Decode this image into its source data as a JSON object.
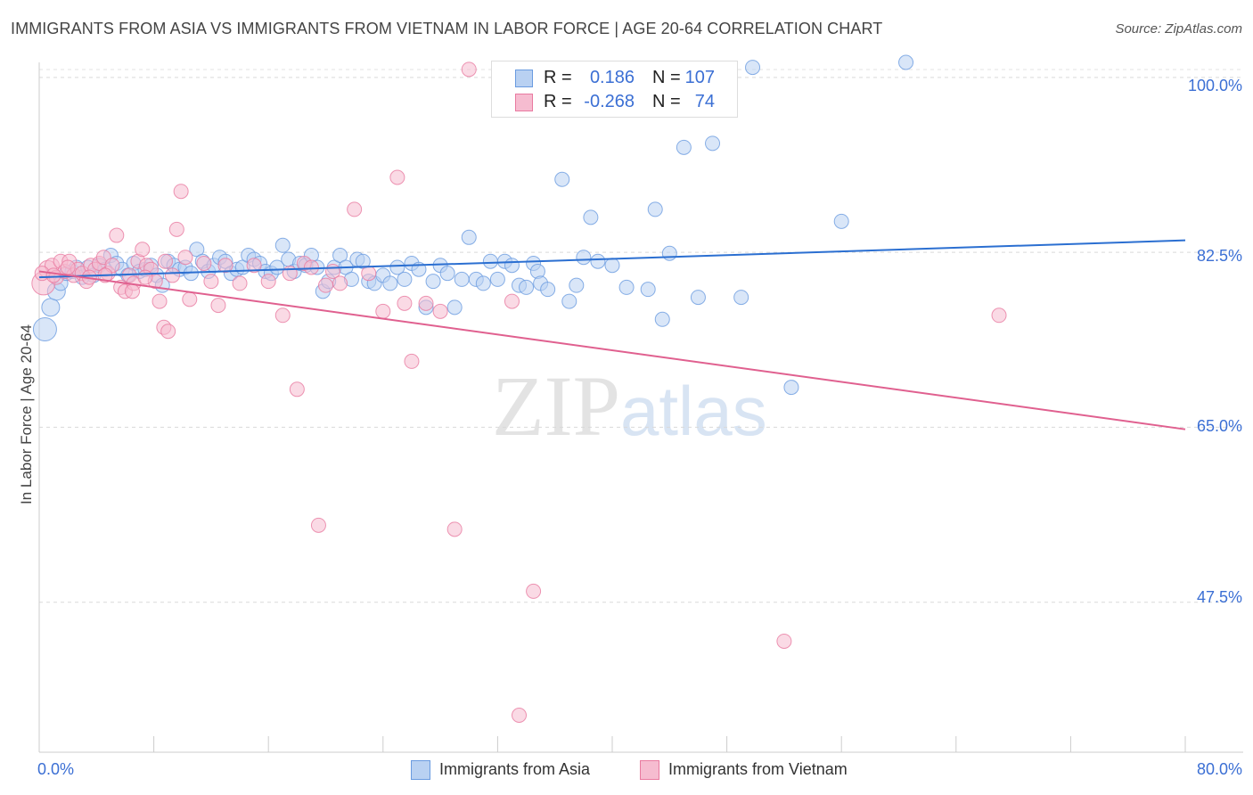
{
  "title": "IMMIGRANTS FROM ASIA VS IMMIGRANTS FROM VIETNAM IN LABOR FORCE | AGE 20-64 CORRELATION CHART",
  "source": "Source: ZipAtlas.com",
  "watermark": {
    "zip": "ZIP",
    "atlas": "atlas"
  },
  "colors": {
    "blue": "#6a9be0",
    "blue_fill": "#b9d1f2",
    "pink": "#e97aa0",
    "pink_fill": "#f6bcd0",
    "blue_line": "#2b6fd1",
    "pink_line": "#e0608f",
    "tick_text": "#3b6fd4"
  },
  "legend_top": {
    "rows": [
      {
        "r_label": "R =",
        "r_value": "0.186",
        "n_label": "N =",
        "n_value": "107"
      },
      {
        "r_label": "R =",
        "r_value": "-0.268",
        "n_label": "N =",
        "n_value": "74"
      }
    ]
  },
  "chart_data": {
    "type": "scatter",
    "title": "IMMIGRANTS FROM ASIA VS IMMIGRANTS FROM VIETNAM IN LABOR FORCE | AGE 20-64 CORRELATION CHART",
    "xlabel": "",
    "ylabel": "In Labor Force | Age 20-64",
    "xlim": [
      0,
      80
    ],
    "ylim": [
      32.5,
      101.5
    ],
    "x_tick_labels": [
      "0.0%",
      "80.0%"
    ],
    "y_ticks": [
      47.5,
      65.0,
      82.5,
      100.0
    ],
    "y_tick_labels": [
      "47.5%",
      "65.0%",
      "82.5%",
      "100.0%"
    ],
    "grid": "horizontal dashed",
    "legend_placement": "bottom-center",
    "series": [
      {
        "name": "Immigrants from Asia",
        "color": "#6a9be0",
        "trend": {
          "x": [
            0,
            80
          ],
          "y": [
            80.0,
            83.7
          ]
        },
        "points": [
          [
            0.4,
            74.8
          ],
          [
            0.8,
            77.0
          ],
          [
            1.2,
            78.6
          ],
          [
            1.5,
            79.4
          ],
          [
            1.9,
            80.4
          ],
          [
            2.3,
            80.6
          ],
          [
            2.6,
            81.0
          ],
          [
            3.0,
            80.0
          ],
          [
            3.4,
            81.0
          ],
          [
            3.8,
            80.2
          ],
          [
            4.2,
            81.2
          ],
          [
            4.6,
            80.8
          ],
          [
            5.0,
            82.2
          ],
          [
            5.4,
            81.4
          ],
          [
            5.8,
            80.8
          ],
          [
            6.2,
            80.2
          ],
          [
            6.6,
            81.4
          ],
          [
            7.0,
            80.6
          ],
          [
            7.4,
            80.8
          ],
          [
            7.8,
            81.2
          ],
          [
            8.2,
            80.2
          ],
          [
            8.6,
            79.2
          ],
          [
            9.0,
            81.6
          ],
          [
            9.4,
            81.2
          ],
          [
            9.8,
            80.8
          ],
          [
            10.2,
            81.0
          ],
          [
            10.6,
            80.4
          ],
          [
            11.0,
            82.8
          ],
          [
            11.4,
            81.6
          ],
          [
            11.8,
            80.6
          ],
          [
            12.2,
            81.2
          ],
          [
            12.6,
            82.0
          ],
          [
            13.0,
            81.6
          ],
          [
            13.4,
            80.4
          ],
          [
            13.8,
            80.8
          ],
          [
            14.2,
            81.0
          ],
          [
            14.6,
            82.2
          ],
          [
            15.0,
            81.8
          ],
          [
            15.4,
            81.4
          ],
          [
            15.8,
            80.6
          ],
          [
            16.2,
            80.4
          ],
          [
            16.6,
            81.0
          ],
          [
            17.0,
            83.2
          ],
          [
            17.4,
            81.8
          ],
          [
            17.8,
            80.6
          ],
          [
            18.2,
            81.4
          ],
          [
            18.6,
            81.2
          ],
          [
            19.0,
            82.2
          ],
          [
            19.4,
            81.0
          ],
          [
            19.8,
            78.6
          ],
          [
            20.2,
            79.6
          ],
          [
            20.6,
            81.0
          ],
          [
            21.0,
            82.2
          ],
          [
            21.4,
            81.0
          ],
          [
            21.8,
            79.8
          ],
          [
            22.2,
            81.8
          ],
          [
            22.6,
            81.6
          ],
          [
            23.0,
            79.6
          ],
          [
            23.4,
            79.4
          ],
          [
            24.0,
            80.2
          ],
          [
            24.5,
            79.4
          ],
          [
            25.0,
            81.0
          ],
          [
            25.5,
            79.8
          ],
          [
            26.0,
            81.4
          ],
          [
            26.5,
            80.8
          ],
          [
            27.0,
            77.0
          ],
          [
            27.5,
            79.6
          ],
          [
            28.0,
            81.2
          ],
          [
            28.5,
            80.4
          ],
          [
            29.0,
            77.0
          ],
          [
            29.5,
            79.8
          ],
          [
            30.0,
            84.0
          ],
          [
            30.5,
            79.8
          ],
          [
            31.0,
            79.4
          ],
          [
            31.5,
            81.6
          ],
          [
            32.0,
            79.8
          ],
          [
            32.5,
            81.6
          ],
          [
            33.0,
            81.2
          ],
          [
            33.5,
            79.2
          ],
          [
            34.0,
            79.0
          ],
          [
            34.5,
            81.4
          ],
          [
            34.8,
            80.6
          ],
          [
            35.0,
            79.4
          ],
          [
            35.5,
            78.8
          ],
          [
            36.5,
            89.8
          ],
          [
            37.0,
            77.6
          ],
          [
            37.5,
            79.2
          ],
          [
            38.0,
            82.0
          ],
          [
            38.5,
            86.0
          ],
          [
            39.0,
            81.6
          ],
          [
            40.0,
            81.2
          ],
          [
            41.0,
            79.0
          ],
          [
            42.5,
            78.8
          ],
          [
            43.0,
            86.8
          ],
          [
            43.5,
            75.8
          ],
          [
            44.0,
            82.4
          ],
          [
            45.0,
            93.0
          ],
          [
            46.0,
            78.0
          ],
          [
            47.0,
            93.4
          ],
          [
            49.0,
            78.0
          ],
          [
            49.8,
            101.0
          ],
          [
            52.5,
            69.0
          ],
          [
            56.0,
            85.6
          ],
          [
            60.5,
            101.5
          ]
        ]
      },
      {
        "name": "Immigrants from Vietnam",
        "color": "#e97aa0",
        "trend": {
          "x": [
            0,
            80
          ],
          "y": [
            80.6,
            64.8
          ]
        },
        "points": [
          [
            0.3,
            79.4
          ],
          [
            0.6,
            80.8
          ],
          [
            0.9,
            81.2
          ],
          [
            1.2,
            80.0
          ],
          [
            1.5,
            81.6
          ],
          [
            1.8,
            80.6
          ],
          [
            2.1,
            81.6
          ],
          [
            2.4,
            80.2
          ],
          [
            2.7,
            80.8
          ],
          [
            3.0,
            80.4
          ],
          [
            3.3,
            79.6
          ],
          [
            3.6,
            81.2
          ],
          [
            3.9,
            80.8
          ],
          [
            4.2,
            81.4
          ],
          [
            4.5,
            82.0
          ],
          [
            4.8,
            80.4
          ],
          [
            5.1,
            81.2
          ],
          [
            5.4,
            84.2
          ],
          [
            5.7,
            79.0
          ],
          [
            6.0,
            78.6
          ],
          [
            6.3,
            80.2
          ],
          [
            6.6,
            79.4
          ],
          [
            6.9,
            81.6
          ],
          [
            7.2,
            82.8
          ],
          [
            7.5,
            81.2
          ],
          [
            7.8,
            80.8
          ],
          [
            8.1,
            79.6
          ],
          [
            8.4,
            77.6
          ],
          [
            8.7,
            75.0
          ],
          [
            9.0,
            74.6
          ],
          [
            9.3,
            80.2
          ],
          [
            9.6,
            84.8
          ],
          [
            9.9,
            88.6
          ],
          [
            10.2,
            82.0
          ],
          [
            10.5,
            77.8
          ],
          [
            11.5,
            81.4
          ],
          [
            12.0,
            79.6
          ],
          [
            12.5,
            77.2
          ],
          [
            13.0,
            81.2
          ],
          [
            14.0,
            79.4
          ],
          [
            15.0,
            81.2
          ],
          [
            16.0,
            79.6
          ],
          [
            17.0,
            76.2
          ],
          [
            17.5,
            80.4
          ],
          [
            18.0,
            68.8
          ],
          [
            18.5,
            81.4
          ],
          [
            19.0,
            81.0
          ],
          [
            19.5,
            55.2
          ],
          [
            20.0,
            79.2
          ],
          [
            20.5,
            80.6
          ],
          [
            21.0,
            79.4
          ],
          [
            22.0,
            86.8
          ],
          [
            23.0,
            80.4
          ],
          [
            24.0,
            76.6
          ],
          [
            25.0,
            90.0
          ],
          [
            25.5,
            77.4
          ],
          [
            26.0,
            71.6
          ],
          [
            27.0,
            77.4
          ],
          [
            28.0,
            76.6
          ],
          [
            29.0,
            54.8
          ],
          [
            30.0,
            100.8
          ],
          [
            33.0,
            77.6
          ],
          [
            33.5,
            36.2
          ],
          [
            34.5,
            48.6
          ],
          [
            52.0,
            43.6
          ],
          [
            67.0,
            76.2
          ],
          [
            0.2,
            80.4
          ],
          [
            1.0,
            80.2
          ],
          [
            2.0,
            81.0
          ],
          [
            3.5,
            80.0
          ],
          [
            4.6,
            80.2
          ],
          [
            6.5,
            78.6
          ],
          [
            7.4,
            80.0
          ],
          [
            8.8,
            81.6
          ]
        ]
      }
    ]
  }
}
